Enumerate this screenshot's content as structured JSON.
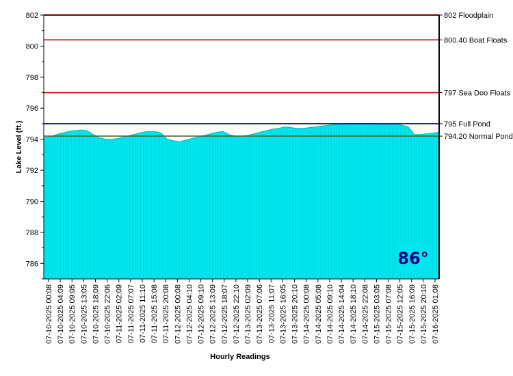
{
  "chart_data": {
    "type": "area",
    "xlabel": "Hourly Readings",
    "ylabel": "Lake Level (ft.)",
    "ylim": [
      785,
      802
    ],
    "yticks": [
      786,
      788,
      790,
      792,
      794,
      796,
      798,
      800,
      802
    ],
    "ytick_labels": [
      "786",
      "788",
      "790",
      "792",
      "794",
      "796",
      "798",
      "800",
      "802"
    ],
    "x_tick_labels": [
      "07-10-2025 00:08",
      "07-10-2025 04:09",
      "07-10-2025 09:05",
      "07-10-2025 13:05",
      "07-10-2025 18:09",
      "07-10-2025 22:06",
      "07-11-2025 02:09",
      "07-11-2025 07:07",
      "07-11-2025 11:10",
      "07-11-2025 15:08",
      "07-11-2025 20:08",
      "07-12-2025 00:08",
      "07-12-2025 04:10",
      "07-12-2025 09:10",
      "07-12-2025 13:09",
      "07-12-2025 18:07",
      "07-12-2025 22:10",
      "07-13-2025 02:09",
      "07-13-2025 07:06",
      "07-13-2025 11:07",
      "07-13-2025 16:05",
      "07-13-2025 20:10",
      "07-14-2025 00:08",
      "07-14-2025 05:08",
      "07-14-2025 09:10",
      "07-14-2025 14:04",
      "07-14-2025 18:10",
      "07-14-2025 22:08",
      "07-15-2025 03:05",
      "07-15-2025 07:08",
      "07-15-2025 12:05",
      "07-15-2025 16:09",
      "07-15-2025 20:10",
      "07-16-2025 01:08"
    ],
    "series": [
      {
        "values": [
          794.1,
          794.15,
          794.3,
          794.4,
          794.5,
          794.55,
          794.6,
          794.55,
          794.3,
          794.1,
          794.0,
          794.0,
          794.05,
          794.15,
          794.25,
          794.35,
          794.45,
          794.5,
          794.5,
          794.4,
          794.0,
          793.9,
          793.85,
          793.95,
          794.05,
          794.15,
          794.25,
          794.35,
          794.45,
          794.5,
          794.3,
          794.2,
          794.2,
          794.25,
          794.35,
          794.45,
          794.55,
          794.65,
          794.7,
          794.8,
          794.75,
          794.7,
          794.7,
          794.75,
          794.8,
          794.85,
          794.9,
          794.95,
          795.0,
          795.0,
          795.0,
          795.0,
          795.0,
          795.0,
          795.0,
          794.95,
          794.95,
          795.0,
          794.9,
          794.8,
          794.3,
          794.3,
          794.35,
          794.4,
          794.45
        ]
      }
    ],
    "reference_lines": [
      {
        "value": 802,
        "label": "802 Floodplain",
        "color": "#cc0000"
      },
      {
        "value": 800.4,
        "label": "800.40 Boat Floats",
        "color": "#cc0000"
      },
      {
        "value": 797,
        "label": "797 Sea Doo Floats",
        "color": "#cc0000"
      },
      {
        "value": 795,
        "label": "795 Full Pond",
        "color": "#000080"
      },
      {
        "value": 794.2,
        "label": "794.20 Normal Pond",
        "color": "#4a6a2a"
      }
    ],
    "fill_color": "#00e5ee",
    "grid": false
  },
  "temperature": {
    "text": "86°",
    "bg_color": "#00e5ee",
    "text_color": "#000080"
  }
}
